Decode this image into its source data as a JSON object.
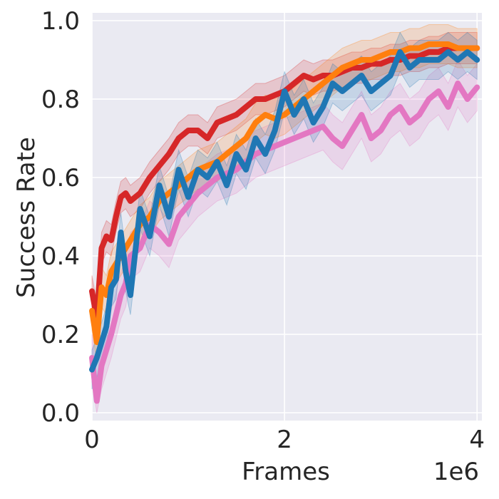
{
  "chart_data": {
    "type": "line",
    "title": "",
    "xlabel": "Frames",
    "ylabel": "Success Rate",
    "x_multiplier_label": "1e6",
    "xlim": [
      0,
      4.05
    ],
    "ylim": [
      -0.02,
      1.02
    ],
    "grid": true,
    "background": "#eaeaf2",
    "x_ticks": [
      0,
      2,
      4
    ],
    "x_tick_labels": [
      "0",
      "2",
      "4"
    ],
    "y_ticks": [
      0.0,
      0.2,
      0.4,
      0.6,
      0.8,
      1.0
    ],
    "y_tick_labels": [
      "0.0",
      "0.2",
      "0.4",
      "0.6",
      "0.8",
      "1.0"
    ],
    "series": [
      {
        "color": "#e377c2",
        "x": [
          0,
          0.05,
          0.1,
          0.15,
          0.2,
          0.25,
          0.3,
          0.35,
          0.4,
          0.5,
          0.6,
          0.7,
          0.8,
          0.9,
          1.0,
          1.1,
          1.2,
          1.3,
          1.4,
          1.5,
          1.6,
          1.7,
          1.8,
          1.9,
          2.0,
          2.1,
          2.2,
          2.3,
          2.4,
          2.5,
          2.6,
          2.7,
          2.8,
          2.9,
          3.0,
          3.1,
          3.2,
          3.3,
          3.4,
          3.5,
          3.6,
          3.7,
          3.8,
          3.9,
          4.0
        ],
        "y": [
          0.14,
          0.03,
          0.12,
          0.16,
          0.2,
          0.25,
          0.3,
          0.33,
          0.4,
          0.42,
          0.48,
          0.46,
          0.43,
          0.5,
          0.53,
          0.56,
          0.58,
          0.6,
          0.61,
          0.62,
          0.64,
          0.66,
          0.67,
          0.68,
          0.69,
          0.7,
          0.71,
          0.72,
          0.73,
          0.7,
          0.68,
          0.72,
          0.76,
          0.7,
          0.72,
          0.76,
          0.78,
          0.74,
          0.76,
          0.8,
          0.82,
          0.78,
          0.84,
          0.8,
          0.83
        ],
        "band": 0.06
      },
      {
        "color": "#d62728",
        "x": [
          0,
          0.05,
          0.1,
          0.15,
          0.2,
          0.25,
          0.3,
          0.35,
          0.4,
          0.5,
          0.6,
          0.7,
          0.8,
          0.9,
          1.0,
          1.1,
          1.2,
          1.3,
          1.4,
          1.5,
          1.6,
          1.7,
          1.8,
          1.9,
          2.0,
          2.1,
          2.2,
          2.3,
          2.4,
          2.5,
          2.6,
          2.7,
          2.8,
          2.9,
          3.0,
          3.1,
          3.2,
          3.3,
          3.4,
          3.5,
          3.6,
          3.7,
          3.8,
          3.9,
          4.0
        ],
        "y": [
          0.31,
          0.24,
          0.42,
          0.45,
          0.44,
          0.5,
          0.55,
          0.56,
          0.54,
          0.56,
          0.6,
          0.63,
          0.66,
          0.7,
          0.72,
          0.72,
          0.7,
          0.74,
          0.75,
          0.76,
          0.78,
          0.8,
          0.8,
          0.81,
          0.82,
          0.84,
          0.86,
          0.85,
          0.86,
          0.86,
          0.87,
          0.88,
          0.88,
          0.89,
          0.89,
          0.9,
          0.9,
          0.91,
          0.91,
          0.92,
          0.92,
          0.93,
          0.93,
          0.93,
          0.93
        ],
        "band": 0.04
      },
      {
        "color": "#ff7f0e",
        "x": [
          0,
          0.05,
          0.1,
          0.15,
          0.2,
          0.25,
          0.3,
          0.35,
          0.4,
          0.5,
          0.6,
          0.7,
          0.8,
          0.9,
          1.0,
          1.1,
          1.2,
          1.3,
          1.4,
          1.5,
          1.6,
          1.7,
          1.8,
          1.9,
          2.0,
          2.1,
          2.2,
          2.3,
          2.4,
          2.5,
          2.6,
          2.7,
          2.8,
          2.9,
          3.0,
          3.1,
          3.2,
          3.3,
          3.4,
          3.5,
          3.6,
          3.7,
          3.8,
          3.9,
          4.0
        ],
        "y": [
          0.26,
          0.18,
          0.32,
          0.3,
          0.36,
          0.38,
          0.4,
          0.42,
          0.44,
          0.48,
          0.5,
          0.54,
          0.56,
          0.58,
          0.6,
          0.62,
          0.63,
          0.64,
          0.66,
          0.68,
          0.7,
          0.74,
          0.76,
          0.75,
          0.76,
          0.78,
          0.8,
          0.82,
          0.84,
          0.86,
          0.88,
          0.89,
          0.9,
          0.9,
          0.91,
          0.92,
          0.92,
          0.93,
          0.93,
          0.94,
          0.94,
          0.94,
          0.93,
          0.93,
          0.93
        ],
        "band": 0.05
      },
      {
        "color": "#1f77b4",
        "x": [
          0,
          0.05,
          0.1,
          0.15,
          0.2,
          0.25,
          0.3,
          0.35,
          0.4,
          0.5,
          0.6,
          0.7,
          0.8,
          0.9,
          1.0,
          1.1,
          1.2,
          1.3,
          1.4,
          1.5,
          1.6,
          1.7,
          1.8,
          1.9,
          2.0,
          2.1,
          2.2,
          2.3,
          2.4,
          2.5,
          2.6,
          2.7,
          2.8,
          2.9,
          3.0,
          3.1,
          3.2,
          3.3,
          3.4,
          3.5,
          3.6,
          3.7,
          3.8,
          3.9,
          4.0
        ],
        "y": [
          0.11,
          0.14,
          0.18,
          0.22,
          0.32,
          0.34,
          0.46,
          0.36,
          0.3,
          0.52,
          0.45,
          0.58,
          0.5,
          0.62,
          0.55,
          0.62,
          0.6,
          0.64,
          0.58,
          0.66,
          0.62,
          0.7,
          0.66,
          0.72,
          0.82,
          0.76,
          0.8,
          0.74,
          0.78,
          0.84,
          0.82,
          0.84,
          0.86,
          0.82,
          0.84,
          0.86,
          0.92,
          0.88,
          0.9,
          0.9,
          0.9,
          0.92,
          0.9,
          0.92,
          0.9
        ],
        "band": 0.05
      }
    ]
  }
}
